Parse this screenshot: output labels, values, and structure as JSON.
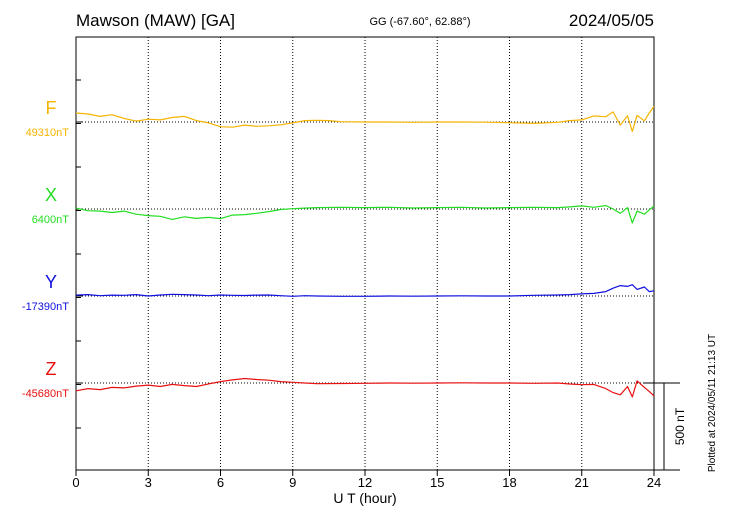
{
  "header": {
    "station": "Mawson (MAW)  [GA]",
    "coords": "GG (-67.60°,  62.88°)",
    "date": "2024/05/05"
  },
  "plotted_note": "Plotted at 2024/05/11 21:13 UT",
  "chart_data": {
    "type": "line",
    "title": "Mawson (MAW)  [GA]",
    "xlabel": "U T (hour)",
    "ylabel": "",
    "xlim": [
      0,
      24
    ],
    "x_ticks": [
      0,
      3,
      6,
      9,
      12,
      15,
      18,
      21,
      24
    ],
    "tick_labels": [
      "0",
      "3",
      "6",
      "9",
      "12",
      "15",
      "18",
      "21",
      "24"
    ],
    "grid": true,
    "scale_bar": {
      "value": 500,
      "label": "500 nT"
    },
    "series": [
      {
        "name": "F",
        "baseline_label": "49310nT",
        "baseline": 49310,
        "color": "#f5b400",
        "x": [
          0,
          0.5,
          1,
          1.5,
          2,
          2.5,
          3,
          3.5,
          4,
          4.5,
          5,
          5.5,
          6,
          6.5,
          7,
          7.5,
          8,
          8.5,
          9,
          9.5,
          10,
          10.5,
          11,
          12,
          13,
          14,
          15,
          16,
          17,
          18,
          19,
          20,
          20.5,
          21,
          21.5,
          22,
          22.3,
          22.6,
          22.9,
          23.1,
          23.3,
          23.6,
          23.8,
          24
        ],
        "values": [
          49362,
          49356,
          49342,
          49352,
          49330,
          49315,
          49326,
          49322,
          49336,
          49342,
          49318,
          49305,
          49283,
          49280,
          49292,
          49285,
          49288,
          49294,
          49305,
          49318,
          49320,
          49318,
          49312,
          49310,
          49310,
          49308,
          49310,
          49310,
          49309,
          49306,
          49302,
          49308,
          49318,
          49322,
          49345,
          49340,
          49368,
          49292,
          49346,
          49256,
          49348,
          49317,
          49362,
          49400
        ]
      },
      {
        "name": "X",
        "baseline_label": "6400nT",
        "baseline": 6400,
        "color": "#22dd22",
        "x": [
          0,
          0.5,
          1,
          1.5,
          2,
          2.5,
          3,
          3.5,
          4,
          4.5,
          5,
          5.5,
          6,
          6.5,
          7,
          7.5,
          8,
          8.5,
          9,
          9.5,
          10,
          11,
          12,
          13,
          14,
          15,
          16,
          17,
          18,
          19,
          20,
          20.5,
          21,
          21.5,
          22,
          22.3,
          22.6,
          22.9,
          23.1,
          23.3,
          23.6,
          23.8,
          24
        ],
        "values": [
          6405,
          6390,
          6388,
          6380,
          6388,
          6370,
          6362,
          6358,
          6340,
          6355,
          6346,
          6352,
          6345,
          6365,
          6368,
          6375,
          6385,
          6397,
          6402,
          6405,
          6408,
          6410,
          6408,
          6410,
          6406,
          6408,
          6410,
          6406,
          6408,
          6410,
          6408,
          6412,
          6418,
          6410,
          6420,
          6400,
          6375,
          6408,
          6320,
          6388,
          6370,
          6395,
          6418
        ]
      },
      {
        "name": "Y",
        "baseline_label": "-17390nT",
        "baseline": -17390,
        "color": "#1010e0",
        "x": [
          0,
          0.5,
          1,
          1.5,
          2,
          2.5,
          3,
          3.5,
          4,
          4.5,
          5,
          5.5,
          6,
          6.5,
          7,
          7.5,
          8,
          8.5,
          9,
          9.5,
          10,
          11,
          12,
          13,
          14,
          15,
          16,
          17,
          18,
          19,
          20,
          20.5,
          21,
          21.5,
          22,
          22.3,
          22.6,
          22.9,
          23.1,
          23.3,
          23.6,
          23.8,
          24
        ],
        "values": [
          -17385,
          -17382,
          -17388,
          -17385,
          -17386,
          -17382,
          -17390,
          -17384,
          -17380,
          -17382,
          -17384,
          -17388,
          -17384,
          -17386,
          -17387,
          -17385,
          -17384,
          -17388,
          -17392,
          -17388,
          -17390,
          -17392,
          -17392,
          -17390,
          -17391,
          -17390,
          -17389,
          -17390,
          -17390,
          -17386,
          -17384,
          -17382,
          -17378,
          -17375,
          -17365,
          -17345,
          -17330,
          -17335,
          -17325,
          -17352,
          -17338,
          -17365,
          -17360
        ]
      },
      {
        "name": "Z",
        "baseline_label": "-45680nT",
        "baseline": -45680,
        "color": "#e81010",
        "x": [
          0,
          0.5,
          1,
          1.5,
          2,
          2.5,
          3,
          3.5,
          4,
          4.5,
          5,
          5.5,
          6,
          6.5,
          7,
          7.5,
          8,
          8.5,
          9,
          9.5,
          10,
          11,
          12,
          13,
          14,
          15,
          16,
          17,
          18,
          19,
          20,
          20.5,
          21,
          21.5,
          22,
          22.3,
          22.6,
          22.9,
          23.1,
          23.3,
          23.6,
          23.8,
          24
        ],
        "values": [
          -45725,
          -45712,
          -45718,
          -45705,
          -45708,
          -45698,
          -45692,
          -45700,
          -45688,
          -45695,
          -45700,
          -45685,
          -45672,
          -45662,
          -45654,
          -45660,
          -45664,
          -45672,
          -45676,
          -45680,
          -45684,
          -45683,
          -45682,
          -45680,
          -45681,
          -45680,
          -45679,
          -45680,
          -45680,
          -45682,
          -45680,
          -45686,
          -45690,
          -45688,
          -45712,
          -45735,
          -45748,
          -45700,
          -45760,
          -45668,
          -45705,
          -45728,
          -45754
        ]
      }
    ]
  }
}
